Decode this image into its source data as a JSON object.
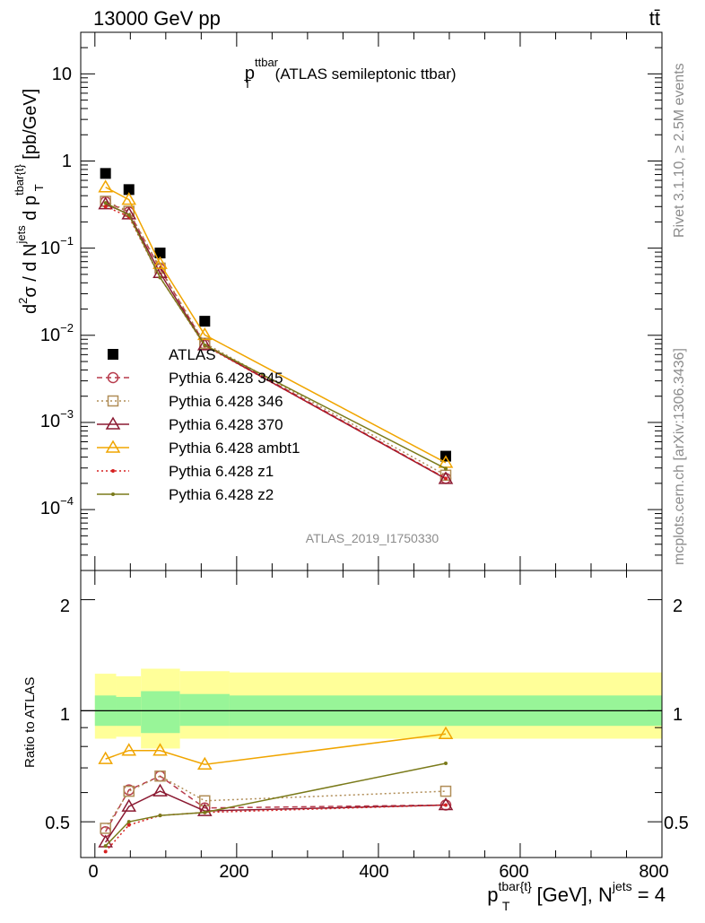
{
  "header": {
    "left": "13000 GeV pp",
    "right": "tt̄"
  },
  "side_labels": {
    "rivet": "Rivet 3.1.10, ≥ 2.5M events",
    "mcplots": "mcplots.cern.ch [arXiv:1306.3436]"
  },
  "plot_title": {
    "main": "p",
    "sup": "ttbar",
    "sub": "T",
    "rest": " (ATLAS semileptonic ttbar)"
  },
  "watermark": "ATLAS_2019_I1750330",
  "y_axis_top": {
    "label": "d²σ / d N^jets d p^tbar{t}_T [pb/GeV]",
    "ticks": [
      "10^-4",
      "10^-3",
      "10^-2",
      "10^-1",
      "1",
      "10"
    ]
  },
  "y_axis_bottom": {
    "label": "Ratio to ATLAS",
    "ticks": [
      "0.5",
      "1",
      "2"
    ]
  },
  "x_axis": {
    "label": "p^tbar{t}_T [GeV], N^jets = 4",
    "ticks": [
      "0",
      "200",
      "400",
      "600",
      "800"
    ]
  },
  "chart_data": [
    {
      "type": "scatter",
      "panel": "main",
      "title": "p_T^ttbar (ATLAS semileptonic ttbar)",
      "xlabel": "p_T^tbar{t} [GeV], N^jets = 4",
      "ylabel": "d²σ / d N^jets d p_T^tbar{t} [pb/GeV]",
      "yscale": "log",
      "xlim": [
        -20,
        800
      ],
      "ylim": [
        2e-05,
        30
      ],
      "legend_position": "center-left",
      "x": [
        15,
        48,
        92,
        155,
        495
      ],
      "series": [
        {
          "name": "ATLAS",
          "style": "marker",
          "marker": "square",
          "color": "#000000",
          "values": [
            0.72,
            0.47,
            0.088,
            0.0145,
            0.00041
          ]
        },
        {
          "name": "Pythia 6.428 345",
          "style": "dashed",
          "marker": "circle",
          "color": "#b73a4b",
          "values": [
            0.34,
            0.26,
            0.058,
            0.0079,
            0.000228
          ]
        },
        {
          "name": "Pythia 6.428 346",
          "style": "dotted",
          "marker": "square-open",
          "color": "#b08d57",
          "values": [
            0.345,
            0.265,
            0.059,
            0.0081,
            0.000248
          ]
        },
        {
          "name": "Pythia 6.428 370",
          "style": "solid",
          "marker": "triangle-open",
          "color": "#8b1a32",
          "values": [
            0.32,
            0.245,
            0.052,
            0.0077,
            0.000225
          ]
        },
        {
          "name": "Pythia 6.428 ambt1",
          "style": "solid",
          "marker": "triangle-open",
          "color": "#f0a500",
          "values": [
            0.5,
            0.36,
            0.066,
            0.0101,
            0.000345
          ]
        },
        {
          "name": "Pythia 6.428 z1",
          "style": "dotted",
          "marker": "dot",
          "color": "#d62020",
          "values": [
            0.3,
            0.23,
            0.046,
            0.0076,
            0.000228
          ]
        },
        {
          "name": "Pythia 6.428 z2",
          "style": "solid",
          "marker": "dot",
          "color": "#7a7a1a",
          "values": [
            0.33,
            0.24,
            0.046,
            0.0077,
            0.000295
          ]
        }
      ]
    },
    {
      "type": "line",
      "panel": "ratio",
      "xlabel": "p_T^tbar{t} [GeV], N^jets = 4",
      "ylabel": "Ratio to ATLAS",
      "yscale": "log",
      "xlim": [
        -20,
        800
      ],
      "ylim": [
        0.4,
        2.4
      ],
      "reference_line": 1,
      "bands": {
        "edges": [
          0,
          30,
          65,
          120,
          190,
          800
        ],
        "inner": [
          [
            0.91,
            1.1
          ],
          [
            0.91,
            1.09
          ],
          [
            0.87,
            1.13
          ],
          [
            0.91,
            1.11
          ],
          [
            0.91,
            1.1
          ]
        ],
        "outer": [
          [
            0.84,
            1.26
          ],
          [
            0.85,
            1.24
          ],
          [
            0.79,
            1.3
          ],
          [
            0.84,
            1.28
          ],
          [
            0.84,
            1.27
          ]
        ],
        "inner_color": "#98f598",
        "outer_color": "#ffff99"
      },
      "x": [
        15,
        48,
        92,
        155,
        495
      ],
      "series": [
        {
          "name": "Pythia 6.428 345",
          "style": "dashed",
          "marker": "circle",
          "color": "#b73a4b",
          "values": [
            0.47,
            0.61,
            0.665,
            0.545,
            0.555
          ]
        },
        {
          "name": "Pythia 6.428 346",
          "style": "dotted",
          "marker": "square-open",
          "color": "#b08d57",
          "values": [
            0.48,
            0.605,
            0.665,
            0.57,
            0.605
          ]
        },
        {
          "name": "Pythia 6.428 370",
          "style": "solid",
          "marker": "triangle-open",
          "color": "#8b1a32",
          "values": [
            0.44,
            0.55,
            0.605,
            0.535,
            0.555
          ]
        },
        {
          "name": "Pythia 6.428 ambt1",
          "style": "solid",
          "marker": "triangle-open",
          "color": "#f0a500",
          "values": [
            0.74,
            0.78,
            0.78,
            0.715,
            0.865
          ]
        },
        {
          "name": "Pythia 6.428 z1",
          "style": "dotted",
          "marker": "dot",
          "color": "#d62020",
          "values": [
            0.415,
            0.49,
            0.52,
            0.53,
            0.555
          ]
        },
        {
          "name": "Pythia 6.428 z2",
          "style": "solid",
          "marker": "dot",
          "color": "#7a7a1a",
          "values": [
            0.43,
            0.5,
            0.52,
            0.53,
            0.72
          ]
        }
      ]
    }
  ]
}
